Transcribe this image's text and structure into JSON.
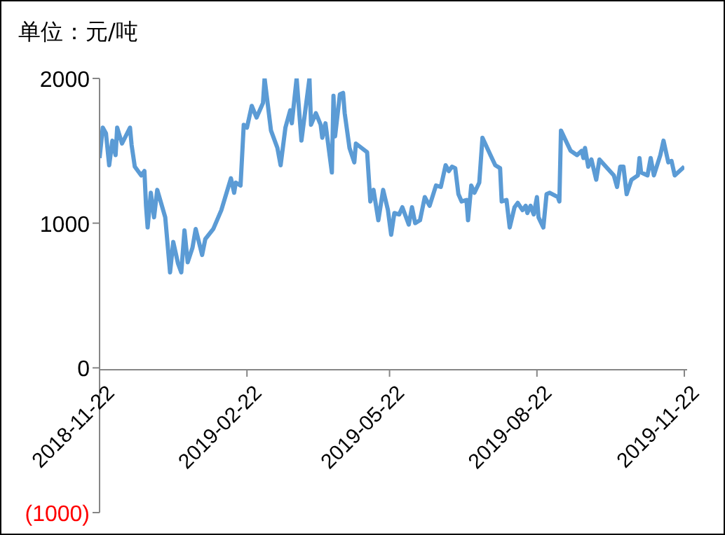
{
  "chart_data": {
    "type": "line",
    "ylabel": "单位：元/吨",
    "x": [
      "2018-11-22",
      "2018-11-24",
      "2018-11-26",
      "2018-11-28",
      "2018-11-30",
      "2018-12-02",
      "2018-12-03",
      "2018-12-06",
      "2018-12-11",
      "2018-12-12",
      "2018-12-14",
      "2018-12-18",
      "2018-12-20",
      "2018-12-21",
      "2018-12-22",
      "2018-12-24",
      "2018-12-26",
      "2018-12-28",
      "2019-01-02",
      "2019-01-05",
      "2019-01-07",
      "2019-01-10",
      "2019-01-12",
      "2019-01-14",
      "2019-01-16",
      "2019-01-19",
      "2019-01-21",
      "2019-01-25",
      "2019-01-27",
      "2019-02-01",
      "2019-02-06",
      "2019-02-12",
      "2019-02-14",
      "2019-02-15",
      "2019-02-18",
      "2019-02-20",
      "2019-02-22",
      "2019-02-25",
      "2019-02-28",
      "2019-03-04",
      "2019-03-05",
      "2019-03-09",
      "2019-03-13",
      "2019-03-15",
      "2019-03-18",
      "2019-03-21",
      "2019-03-22",
      "2019-03-25",
      "2019-03-28",
      "2019-04-02",
      "2019-04-03",
      "2019-04-06",
      "2019-04-09",
      "2019-04-10",
      "2019-04-12",
      "2019-04-16",
      "2019-04-17",
      "2019-04-18",
      "2019-04-21",
      "2019-04-23",
      "2019-04-24",
      "2019-04-27",
      "2019-04-30",
      "2019-05-01",
      "2019-05-08",
      "2019-05-10",
      "2019-05-12",
      "2019-05-15",
      "2019-05-18",
      "2019-05-21",
      "2019-05-23",
      "2019-05-25",
      "2019-05-28",
      "2019-05-30",
      "2019-06-03",
      "2019-06-05",
      "2019-06-07",
      "2019-06-10",
      "2019-06-13",
      "2019-06-16",
      "2019-06-20",
      "2019-06-23",
      "2019-06-26",
      "2019-06-28",
      "2019-06-30",
      "2019-07-02",
      "2019-07-04",
      "2019-07-06",
      "2019-07-09",
      "2019-07-10",
      "2019-07-12",
      "2019-07-14",
      "2019-07-17",
      "2019-07-19",
      "2019-07-24",
      "2019-07-27",
      "2019-07-30",
      "2019-07-31",
      "2019-08-03",
      "2019-08-05",
      "2019-08-08",
      "2019-08-10",
      "2019-08-13",
      "2019-08-15",
      "2019-08-16",
      "2019-08-18",
      "2019-08-20",
      "2019-08-22",
      "2019-08-23",
      "2019-08-26",
      "2019-08-28",
      "2019-08-30",
      "2019-09-04",
      "2019-09-05",
      "2019-09-06",
      "2019-09-12",
      "2019-09-16",
      "2019-09-19",
      "2019-09-20",
      "2019-09-21",
      "2019-09-23",
      "2019-09-25",
      "2019-09-28",
      "2019-09-30",
      "2019-10-09",
      "2019-10-11",
      "2019-10-13",
      "2019-10-15",
      "2019-10-17",
      "2019-10-20",
      "2019-10-24",
      "2019-10-25",
      "2019-10-26",
      "2019-10-30",
      "2019-11-01",
      "2019-11-03",
      "2019-11-07",
      "2019-11-09",
      "2019-11-12",
      "2019-11-14",
      "2019-11-16",
      "2019-11-22"
    ],
    "series": [
      {
        "color": "#5b9bd5",
        "values": [
          1450,
          1660,
          1620,
          1400,
          1570,
          1470,
          1660,
          1550,
          1660,
          1540,
          1390,
          1330,
          1360,
          1120,
          970,
          1210,
          1040,
          1230,
          1040,
          660,
          870,
          720,
          660,
          950,
          730,
          830,
          960,
          780,
          890,
          960,
          1090,
          1310,
          1210,
          1280,
          1260,
          1680,
          1660,
          1810,
          1730,
          1830,
          2000,
          1640,
          1520,
          1400,
          1660,
          1780,
          1690,
          2000,
          1570,
          2000,
          1680,
          1760,
          1680,
          1590,
          1690,
          1350,
          1880,
          1600,
          1890,
          1900,
          1760,
          1520,
          1420,
          1550,
          1490,
          1150,
          1230,
          1020,
          1230,
          1090,
          920,
          1070,
          1060,
          1110,
          990,
          1110,
          1000,
          1020,
          1180,
          1120,
          1260,
          1250,
          1400,
          1360,
          1390,
          1380,
          1200,
          1150,
          1160,
          1020,
          1260,
          1210,
          1280,
          1590,
          1470,
          1400,
          1380,
          1150,
          1160,
          970,
          1110,
          1140,
          1090,
          1120,
          1070,
          1120,
          1060,
          1180,
          1040,
          970,
          1200,
          1210,
          1180,
          1150,
          1640,
          1500,
          1470,
          1500,
          1450,
          1520,
          1390,
          1440,
          1300,
          1440,
          1330,
          1250,
          1390,
          1390,
          1200,
          1300,
          1330,
          1450,
          1350,
          1330,
          1450,
          1330,
          1470,
          1570,
          1420,
          1430,
          1330,
          1390
        ]
      }
    ],
    "xlim": [
      "2018-11-22",
      "2019-11-22"
    ],
    "xticks": [
      "2018-11-22",
      "2019-02-22",
      "2019-05-22",
      "2019-08-22",
      "2019-11-22"
    ],
    "ylim": [
      -1000,
      2000
    ],
    "yticks": [
      {
        "value": -1000,
        "label": "(1000)"
      },
      0,
      1000,
      2000
    ],
    "grid": false,
    "legend": false,
    "marker": "none",
    "line_style": "solid"
  }
}
